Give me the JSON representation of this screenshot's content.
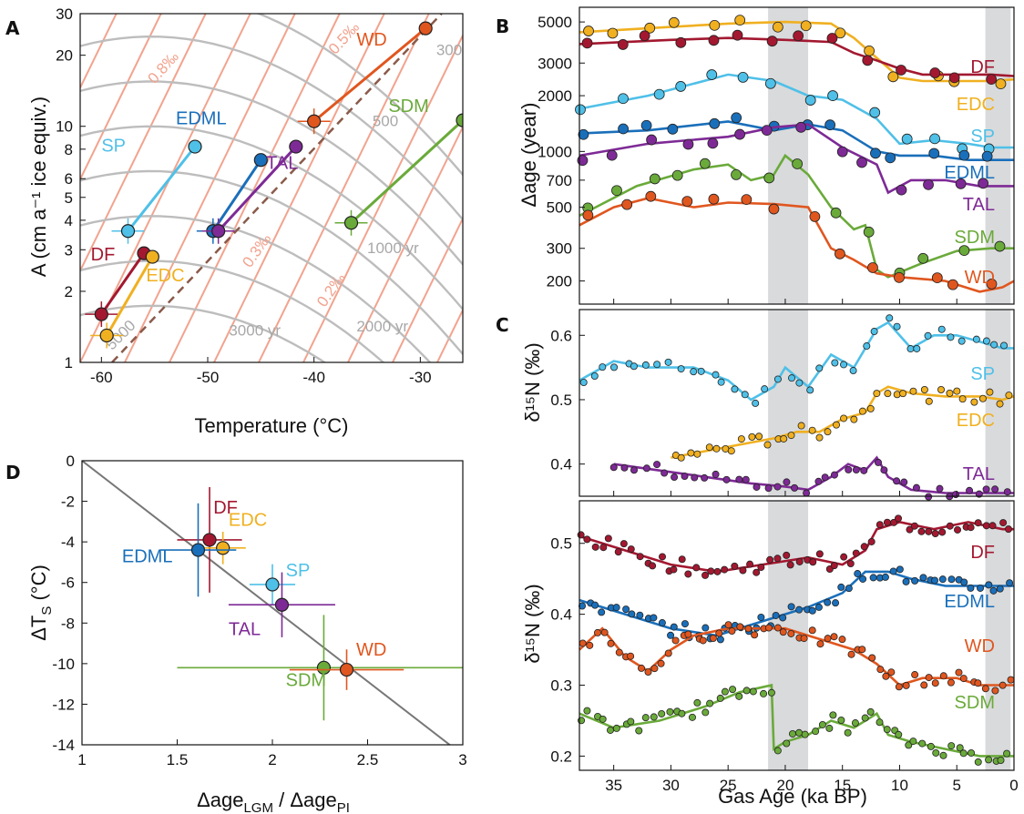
{
  "colors": {
    "DF": "#a31830",
    "EDC": "#f0b020",
    "SP": "#4fc0e8",
    "EDML": "#1a6fba",
    "TAL": "#7e2a96",
    "SDM": "#6aaa3a",
    "WD": "#e0561f",
    "accum_lines": "#f2a38e",
    "age_lines": "#bdbdbd",
    "shade": "#d9dadc"
  },
  "chart_data": [
    {
      "panel": "A",
      "type": "scatter",
      "xlabel": "Temperature (°C)",
      "ylabel": "A (cm a⁻¹ ice equiv.)",
      "xlim": [
        -62,
        -26
      ],
      "ylim": [
        1,
        30
      ],
      "yscale": "log",
      "xticks": [
        -60,
        -50,
        -40,
        -30
      ],
      "xtick_labels": [
        "-60",
        "-50",
        "-40",
        "-30"
      ],
      "yticks": [
        1,
        2,
        3,
        4,
        5,
        6,
        8,
        10,
        20,
        30
      ],
      "ytick_labels": [
        "1",
        "2",
        "3",
        "4",
        "5",
        "6",
        "8",
        "10",
        "20",
        "30"
      ],
      "series": [
        {
          "name": "DF",
          "lgm": [
            -60,
            1.6
          ],
          "pi": [
            -56,
            2.9
          ]
        },
        {
          "name": "EDC",
          "lgm": [
            -59.5,
            1.3
          ],
          "pi": [
            -55.2,
            2.8
          ]
        },
        {
          "name": "SP",
          "lgm": [
            -57.5,
            3.6
          ],
          "pi": [
            -51.2,
            8.2
          ]
        },
        {
          "name": "EDML",
          "lgm": [
            -49.5,
            3.6
          ],
          "pi": [
            -45,
            7.2
          ]
        },
        {
          "name": "TAL",
          "lgm": [
            -49,
            3.6
          ],
          "pi": [
            -41.7,
            8.2
          ]
        },
        {
          "name": "SDM",
          "lgm": [
            -36.5,
            3.9
          ],
          "pi": [
            -26,
            10.6
          ]
        },
        {
          "name": "WD",
          "lgm": [
            -40,
            10.5
          ],
          "pi": [
            -29.5,
            26
          ]
        }
      ],
      "annotations": [
        "0.8‰",
        "0.5‰",
        "0.3‰",
        "0.2‰",
        "300",
        "500",
        "1000 yr",
        "2000 yr",
        "3000 yr",
        "5000"
      ],
      "label_text": {
        "DF": "DF",
        "EDC": "EDC",
        "SP": "SP",
        "EDML": "EDML",
        "TAL": "TAL",
        "SDM": "SDM",
        "WD": "WD"
      }
    },
    {
      "panel": "B",
      "type": "line",
      "xlabel": "",
      "ylabel": "Δage (year)",
      "xlim": [
        38,
        0
      ],
      "ylim": [
        150,
        6000
      ],
      "yscale": "log",
      "yticks": [
        200,
        300,
        500,
        700,
        1000,
        2000,
        3000,
        5000
      ],
      "ytick_labels": [
        "200",
        "300",
        "500",
        "700",
        "1000",
        "2000",
        "3000",
        "5000"
      ],
      "series": [
        {
          "name": "EDC",
          "x": [
            38,
            30,
            25,
            20,
            16,
            14,
            12,
            10,
            8,
            5,
            2,
            0
          ],
          "y": [
            4400,
            4700,
            4900,
            5000,
            4900,
            4100,
            3200,
            2500,
            2400,
            2400,
            2400,
            2450
          ]
        },
        {
          "name": "DF",
          "x": [
            38,
            30,
            25,
            20,
            16,
            14,
            12,
            10,
            8,
            5,
            2,
            0
          ],
          "y": [
            3800,
            4000,
            4100,
            4000,
            3900,
            3400,
            3100,
            2800,
            2600,
            2600,
            2600,
            2550
          ]
        },
        {
          "name": "SP",
          "x": [
            38,
            32,
            25,
            21,
            18,
            15,
            12,
            10,
            7,
            4,
            2,
            0
          ],
          "y": [
            1700,
            2000,
            2600,
            2400,
            2000,
            1900,
            1500,
            1100,
            1150,
            1100,
            1050,
            1050
          ]
        },
        {
          "name": "EDML",
          "x": [
            38,
            32,
            25,
            21,
            18,
            15,
            12,
            10,
            7,
            4,
            2,
            0
          ],
          "y": [
            1250,
            1300,
            1450,
            1300,
            1400,
            1300,
            1000,
            950,
            950,
            900,
            900,
            900
          ]
        },
        {
          "name": "TAL",
          "x": [
            38,
            32,
            25,
            21,
            18,
            15,
            12,
            11,
            9,
            6,
            3,
            0
          ],
          "y": [
            950,
            1100,
            1200,
            1350,
            1400,
            1050,
            850,
            600,
            700,
            700,
            650,
            650
          ]
        },
        {
          "name": "SDM",
          "x": [
            38,
            33,
            28,
            25,
            23,
            21,
            20,
            18,
            16,
            14,
            13,
            12,
            11,
            8,
            5,
            2,
            0
          ],
          "y": [
            450,
            650,
            800,
            850,
            700,
            750,
            950,
            750,
            500,
            380,
            400,
            230,
            210,
            250,
            290,
            300,
            300
          ]
        },
        {
          "name": "WD",
          "x": [
            38,
            35,
            32,
            28,
            25,
            21,
            18,
            16,
            14,
            12,
            10,
            6,
            3,
            1,
            0
          ],
          "y": [
            400,
            500,
            560,
            500,
            530,
            520,
            500,
            300,
            260,
            220,
            210,
            200,
            175,
            185,
            200
          ]
        }
      ],
      "label_text": {
        "DF": "DF",
        "EDC": "EDC",
        "SP": "SP",
        "EDML": "EDML",
        "TAL": "TAL",
        "SDM": "SDM",
        "WD": "WD"
      }
    },
    {
      "panel": "C",
      "type": "line",
      "xlabel": "",
      "ylabel": "δ¹⁵N (‰)",
      "xlim": [
        38,
        0
      ],
      "ylim": [
        0.35,
        0.64
      ],
      "yticks": [
        0.4,
        0.5,
        0.6
      ],
      "ytick_labels": [
        "0.4",
        "0.5",
        "0.6"
      ],
      "series": [
        {
          "name": "SP",
          "x": [
            38,
            35,
            32,
            28,
            25,
            23,
            21,
            20,
            18,
            16,
            14,
            12,
            11,
            9,
            7,
            5,
            3,
            1,
            0
          ],
          "y": [
            0.53,
            0.56,
            0.55,
            0.55,
            0.53,
            0.5,
            0.52,
            0.55,
            0.52,
            0.57,
            0.55,
            0.61,
            0.62,
            0.58,
            0.6,
            0.6,
            0.59,
            0.58,
            0.58
          ]
        },
        {
          "name": "EDC",
          "x": [
            30,
            27,
            24,
            21,
            19,
            17,
            15,
            13,
            12,
            11,
            9,
            6,
            3,
            1,
            0
          ],
          "y": [
            0.41,
            0.42,
            0.43,
            0.44,
            0.45,
            0.45,
            0.47,
            0.48,
            0.51,
            0.52,
            0.51,
            0.505,
            0.505,
            0.5,
            0.505
          ]
        },
        {
          "name": "TAL",
          "x": [
            35,
            31,
            27,
            23,
            20,
            18,
            16,
            14.5,
            13,
            12,
            11,
            9,
            6,
            3,
            0
          ],
          "y": [
            0.4,
            0.39,
            0.38,
            0.37,
            0.365,
            0.36,
            0.38,
            0.4,
            0.39,
            0.41,
            0.38,
            0.36,
            0.355,
            0.355,
            0.355
          ]
        }
      ],
      "label_text": {
        "SP": "SP",
        "EDC": "EDC",
        "TAL": "TAL"
      }
    },
    {
      "panel": "C-lower",
      "type": "line",
      "xlabel": "Gas Age (ka BP)",
      "ylabel": "δ¹⁵N (‰)",
      "xlim": [
        38,
        0
      ],
      "ylim": [
        0.18,
        0.56
      ],
      "xticks": [
        35,
        30,
        25,
        20,
        15,
        10,
        5,
        0
      ],
      "xtick_labels": [
        "35",
        "30",
        "25",
        "20",
        "15",
        "10",
        "5",
        "0"
      ],
      "yticks": [
        0.2,
        0.3,
        0.4,
        0.5
      ],
      "ytick_labels": [
        "0.2",
        "0.3",
        "0.4",
        "0.5"
      ],
      "series": [
        {
          "name": "DF",
          "x": [
            38,
            34,
            30,
            26,
            22,
            18,
            15,
            13,
            12,
            10,
            7,
            4,
            1,
            0
          ],
          "y": [
            0.51,
            0.49,
            0.47,
            0.46,
            0.47,
            0.48,
            0.47,
            0.49,
            0.52,
            0.53,
            0.52,
            0.53,
            0.52,
            0.52
          ]
        },
        {
          "name": "EDML",
          "x": [
            38,
            34,
            30,
            26,
            22,
            18,
            15,
            13,
            11,
            9,
            6,
            3,
            0
          ],
          "y": [
            0.42,
            0.4,
            0.38,
            0.37,
            0.39,
            0.41,
            0.43,
            0.46,
            0.46,
            0.45,
            0.44,
            0.44,
            0.44
          ]
        },
        {
          "name": "WD",
          "x": [
            38,
            36,
            34,
            32,
            30,
            28,
            25,
            22,
            20,
            18,
            16,
            14,
            12,
            10,
            8,
            5,
            3,
            0
          ],
          "y": [
            0.35,
            0.38,
            0.34,
            0.32,
            0.35,
            0.37,
            0.38,
            0.38,
            0.38,
            0.37,
            0.36,
            0.35,
            0.33,
            0.3,
            0.31,
            0.31,
            0.3,
            0.3
          ]
        },
        {
          "name": "SDM",
          "x": [
            38,
            35,
            31,
            27,
            24,
            21.2,
            21,
            20,
            18,
            16,
            14,
            12,
            11,
            9,
            6,
            3,
            0
          ],
          "y": [
            0.26,
            0.24,
            0.25,
            0.27,
            0.29,
            0.3,
            0.21,
            0.22,
            0.23,
            0.25,
            0.24,
            0.26,
            0.23,
            0.22,
            0.21,
            0.2,
            0.2
          ]
        }
      ],
      "shaded_regions": [
        [
          21.5,
          18
        ],
        [
          2.5,
          0.3
        ]
      ],
      "label_text": {
        "DF": "DF",
        "EDML": "EDML",
        "WD": "WD",
        "SDM": "SDM"
      }
    },
    {
      "panel": "D",
      "type": "scatter",
      "xlabel": "Δage_LGM / Δage_PI",
      "ylabel": "ΔT_S (°C)",
      "xlim": [
        1,
        3
      ],
      "ylim": [
        -14,
        0
      ],
      "xticks": [
        1,
        1.5,
        2,
        2.5,
        3
      ],
      "xtick_labels": [
        "1",
        "1.5",
        "2",
        "2.5",
        "3"
      ],
      "yticks": [
        0,
        -2,
        -4,
        -6,
        -8,
        -10,
        -12,
        -14
      ],
      "ytick_labels": [
        "0",
        "-2",
        "-4",
        "-6",
        "-8",
        "-10",
        "-12",
        "-14"
      ],
      "fit_line": [
        [
          1,
          0
        ],
        [
          3,
          -14.5
        ]
      ],
      "points": [
        {
          "name": "DF",
          "x": 1.67,
          "y": -3.9,
          "xerr": 0.17,
          "yerr": 2.6
        },
        {
          "name": "EDC",
          "x": 1.74,
          "y": -4.3,
          "xerr": 0.12,
          "yerr": 0.8
        },
        {
          "name": "EDML",
          "x": 1.61,
          "y": -4.4,
          "xerr": 0.2,
          "yerr": 2.3
        },
        {
          "name": "SP",
          "x": 2.0,
          "y": -6.1,
          "xerr": 0.12,
          "yerr": 1.0
        },
        {
          "name": "TAL",
          "x": 2.05,
          "y": -7.1,
          "xerr": 0.28,
          "yerr": 1.6
        },
        {
          "name": "SDM",
          "x": 2.27,
          "y": -10.2,
          "xerr": 0.77,
          "yerr": 2.6
        },
        {
          "name": "WD",
          "x": 2.39,
          "y": -10.3,
          "xerr": 0.3,
          "yerr": 1.0
        }
      ],
      "label_text": {
        "DF": "DF",
        "EDC": "EDC",
        "SP": "SP",
        "EDML": "EDML",
        "TAL": "TAL",
        "SDM": "SDM",
        "WD": "WD"
      }
    }
  ],
  "panels": {
    "A": {
      "letter": "A",
      "xlabel": "Temperature (°C)",
      "ylabel": "A (cm a⁻¹ ice equiv.)"
    },
    "B": {
      "letter": "B",
      "ylabel": "Δage (year)"
    },
    "C": {
      "letter": "C",
      "ylabel": "δ¹⁵N (‰)",
      "xlabel": "Gas Age (ka BP)"
    },
    "D": {
      "letter": "D",
      "ylabel": "ΔT",
      "ylabel_sub": "S",
      "ylabel_unit": " (°C)",
      "xlabel_a": "Δage",
      "xlabel_a_sub": "LGM",
      "xlabel_sep": " / Δage",
      "xlabel_b_sub": "PI"
    }
  }
}
